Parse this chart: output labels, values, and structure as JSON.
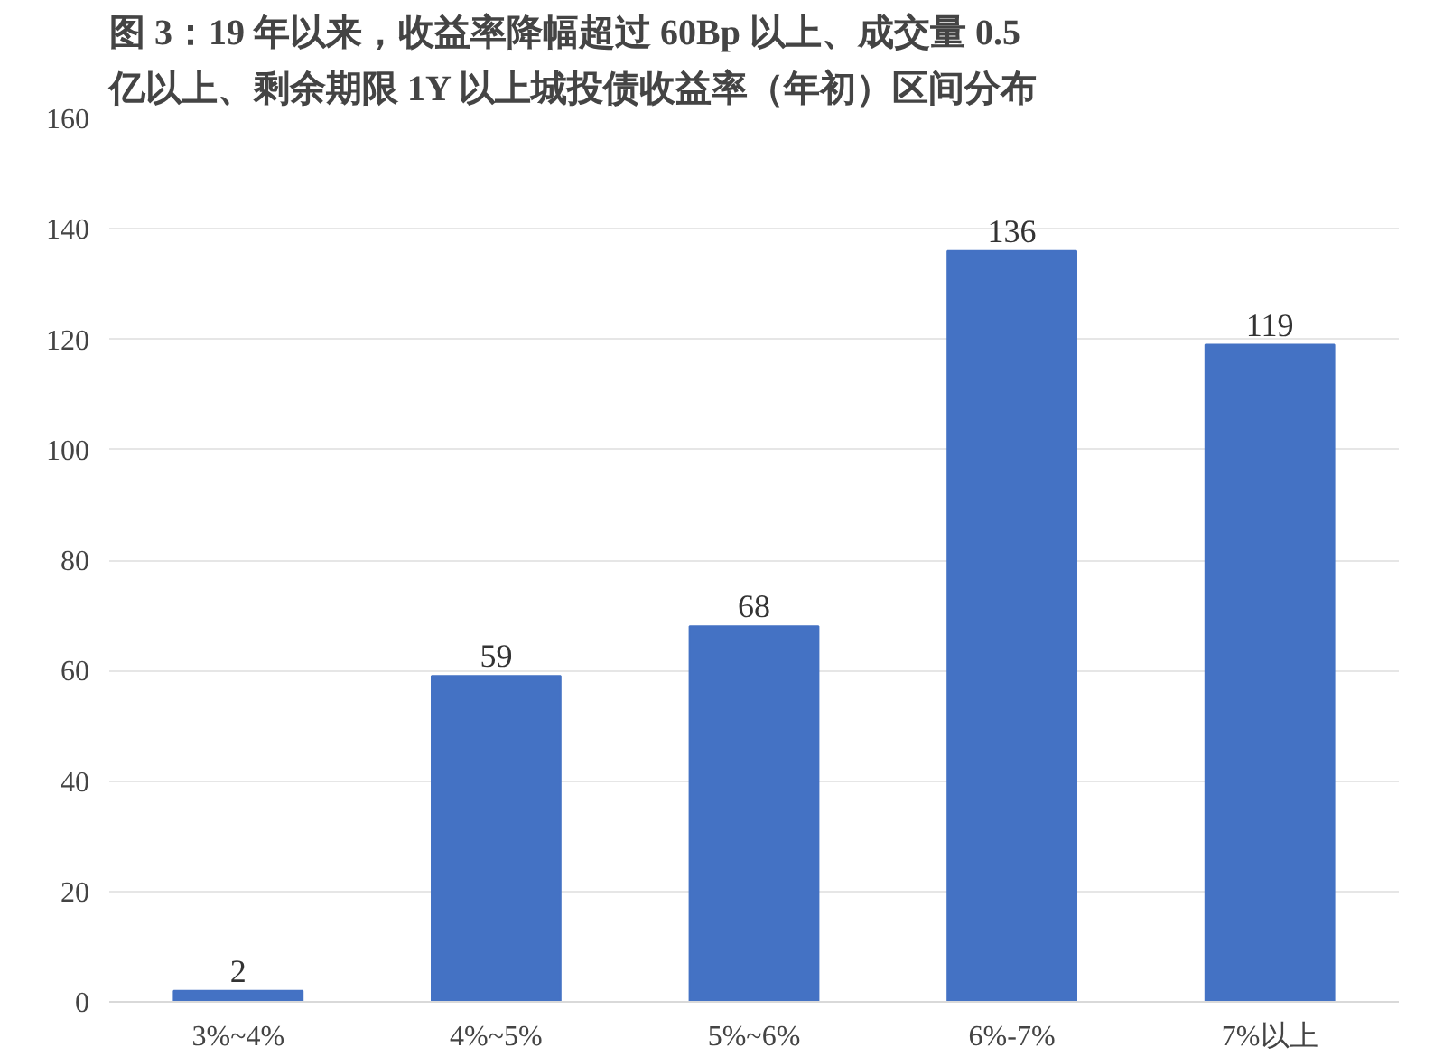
{
  "chart_data": {
    "type": "bar",
    "title": "图 3：19 年以来，收益率降幅超过 60Bp 以上、成交量 0.5\n亿以上、剩余期限 1Y 以上城投债收益率（年初）区间分布",
    "categories": [
      "3%~4%",
      "4%~5%",
      "5%~6%",
      "6%-7%",
      "7%以上"
    ],
    "values": [
      2,
      59,
      68,
      136,
      119
    ],
    "color": "#4472c4",
    "ylim": [
      0,
      160
    ],
    "yticks": [
      0,
      20,
      40,
      60,
      80,
      100,
      120,
      140,
      160
    ],
    "grid": "y",
    "data_labels": true
  }
}
